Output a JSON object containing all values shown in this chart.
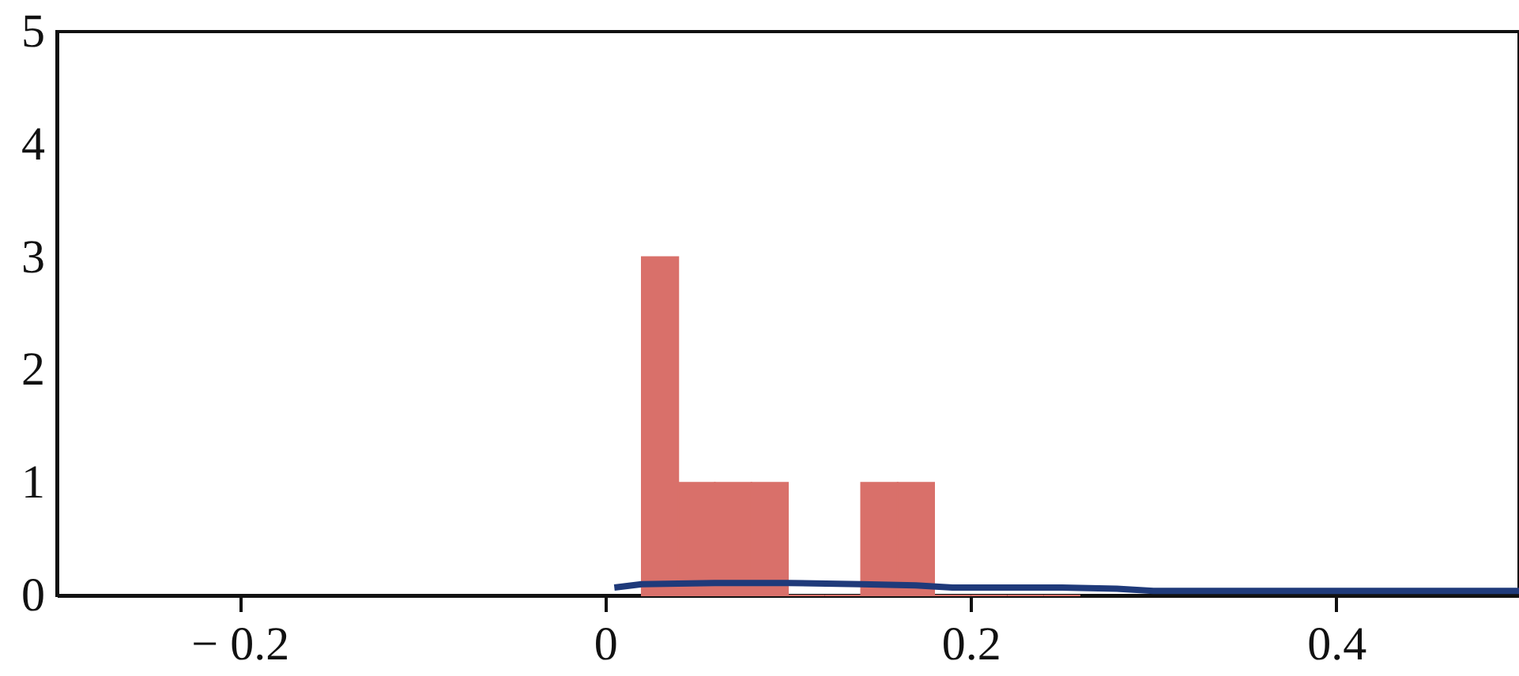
{
  "chart_data": {
    "type": "histogram",
    "series": [
      {
        "color": "#d9706a",
        "bins": [
          0.02,
          0.04,
          0.06,
          0.08,
          0.1,
          0.12,
          0.14,
          0.16,
          0.18,
          0.2,
          0.22,
          0.24,
          0.26
        ],
        "values": [
          3,
          1,
          1,
          1,
          0,
          0,
          1,
          1,
          0,
          0,
          0,
          0
        ]
      },
      {
        "type": "line",
        "color": "#1f3a7a",
        "x": [
          0.005,
          0.02,
          0.06,
          0.1,
          0.14,
          0.17,
          0.19,
          0.25,
          0.28,
          0.3,
          0.4,
          0.5
        ],
        "values": [
          0.07,
          0.1,
          0.11,
          0.11,
          0.1,
          0.09,
          0.07,
          0.07,
          0.06,
          0.04,
          0.04,
          0.04
        ]
      }
    ],
    "xlim": [
      -0.3,
      0.5
    ],
    "ylim": [
      0,
      5
    ],
    "xticks": [
      {
        "value": -0.2,
        "label": "− 0.2"
      },
      0,
      0.2,
      0.4
    ],
    "yticks": [
      0,
      1,
      2,
      3,
      4,
      5
    ],
    "grid": false
  }
}
